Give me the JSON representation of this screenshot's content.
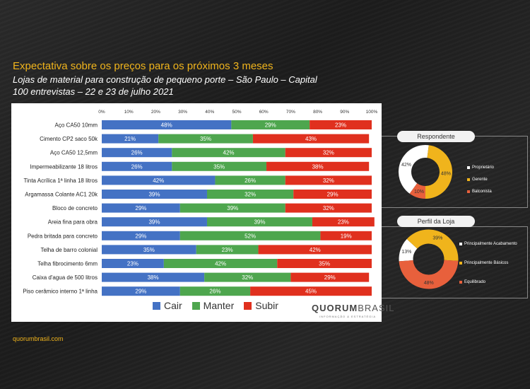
{
  "header": {
    "title": "Expectativa sobre os preços para os próximos 3 meses",
    "subtitle": "Lojas de material para construção de pequeno porte – São Paulo – Capital",
    "subtitle2": "100 entrevistas – 22 e 23 de julho 2021"
  },
  "footer": "quorumbrasil.com",
  "brand": {
    "name_a": "QUORUM",
    "name_b": "BRASIL",
    "tagline": "INFORMAÇÃO & ESTRATÉGIA"
  },
  "colors": {
    "cair": "#4472c4",
    "manter": "#4ea64e",
    "subir": "#e0301e",
    "gold": "#f0b41c",
    "orange": "#e8603c",
    "white": "#ffffff"
  },
  "chart_data": [
    {
      "type": "bar",
      "orientation": "horizontal",
      "stacked": true,
      "xlim": [
        0,
        100
      ],
      "xticks": [
        "0%",
        "10%",
        "20%",
        "30%",
        "40%",
        "50%",
        "60%",
        "70%",
        "80%",
        "90%",
        "100%"
      ],
      "categories": [
        "Aço CA50 10mm",
        "Cimento CP2 saco 50k",
        "Aço CA50 12,5mm",
        "Impermeabilizante 18 litros",
        "Tinta Acrílica 1ª linha 18 litros",
        "Argamassa Colante AC1 20k",
        "Bloco de concreto",
        "Areia fina para obra",
        "Pedra britada para concreto",
        "Telha de barro colonial",
        "Telha fibrocimento 6mm",
        "Caixa d'agua de 500 litros",
        "Piso cerâmico interno 1ª linha"
      ],
      "series": [
        {
          "name": "Cair",
          "values": [
            48,
            21,
            26,
            26,
            42,
            39,
            29,
            39,
            29,
            35,
            23,
            38,
            29
          ]
        },
        {
          "name": "Manter",
          "values": [
            29,
            35,
            42,
            35,
            26,
            32,
            39,
            39,
            52,
            23,
            42,
            32,
            26
          ]
        },
        {
          "name": "Subir",
          "values": [
            23,
            43,
            32,
            38,
            32,
            29,
            32,
            23,
            19,
            42,
            35,
            29,
            45
          ]
        }
      ],
      "legend": "bottom"
    },
    {
      "type": "pie",
      "donut": true,
      "title": "Respondente",
      "slices": [
        {
          "name": "Proprietário",
          "value": 42
        },
        {
          "name": "Gerente",
          "value": 48
        },
        {
          "name": "Balconista",
          "value": 10
        }
      ]
    },
    {
      "type": "pie",
      "donut": true,
      "title": "Perfil da Loja",
      "slices": [
        {
          "name": "Principalmente Acabamento",
          "value": 13
        },
        {
          "name": "Principalmente Básicos",
          "value": 39
        },
        {
          "name": "Equilibrado",
          "value": 48
        }
      ]
    }
  ]
}
